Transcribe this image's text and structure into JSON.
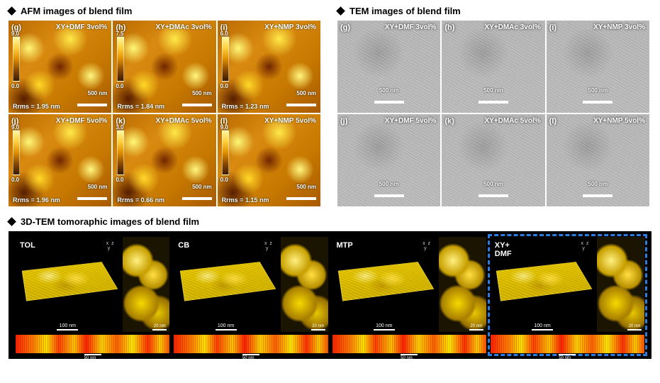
{
  "sections": {
    "afm_title": "AFM images of blend film",
    "tem_title": "TEM images of blend film",
    "tomo_title": "3D-TEM tomoraphic images of blend film"
  },
  "afm": {
    "panels": [
      {
        "letter": "(g)",
        "title": "XY+DMF 3vol%",
        "cb_max": "9.0",
        "cb_min": "0.0",
        "rrms": "Rrms = 1.95 nm",
        "scale": "500 nm"
      },
      {
        "letter": "(h)",
        "title": "XY+DMAc 3vol%",
        "cb_max": "7.5",
        "cb_min": "0.0",
        "rrms": "Rrms = 1.84 nm",
        "scale": "500 nm"
      },
      {
        "letter": "(i)",
        "title": "XY+NMP 3vol%",
        "cb_max": "6.0",
        "cb_min": "0.0",
        "rrms": "Rrms = 1.23 nm",
        "scale": "500 nm"
      },
      {
        "letter": "(j)",
        "title": "XY+DMF 5vol%",
        "cb_max": "9.0",
        "cb_min": "0.0",
        "rrms": "Rrms = 1.96 nm",
        "scale": "500 nm"
      },
      {
        "letter": "(k)",
        "title": "XY+DMAc 5vol%",
        "cb_max": "3.0",
        "cb_min": "0.0",
        "rrms": "Rrms = 0.66 nm",
        "scale": "500 nm"
      },
      {
        "letter": "(l)",
        "title": "XY+NMP 5vol%",
        "cb_max": "9.0",
        "cb_min": "0.0",
        "rrms": "Rrms = 1.15 nm",
        "scale": "500 nm"
      }
    ]
  },
  "tem": {
    "panels": [
      {
        "letter": "(g)",
        "title": "XY+DMF 3vol%",
        "scale": "500 nm"
      },
      {
        "letter": "(h)",
        "title": "XY+DMAc 3vol%",
        "scale": "500 nm"
      },
      {
        "letter": "(i)",
        "title": "XY+NMP 3vol%",
        "scale": "500 nm"
      },
      {
        "letter": "(j)",
        "title": "XY+DMF 5vol%",
        "scale": "500 nm"
      },
      {
        "letter": "(k)",
        "title": "XY+DMAc 5vol%",
        "scale": "500 nm"
      },
      {
        "letter": "(l)",
        "title": "XY+NMP 5vol%",
        "scale": "500 nm"
      }
    ]
  },
  "tomo": {
    "items": [
      {
        "label": "TOL",
        "slab_scale": "100 nm",
        "zoom_scale": "20 nm",
        "bottom_scale": "50 nm",
        "highlight": false
      },
      {
        "label": "CB",
        "slab_scale": "100 nm",
        "zoom_scale": "20 nm",
        "bottom_scale": "50 nm",
        "highlight": false
      },
      {
        "label": "MTP",
        "slab_scale": "100 nm",
        "zoom_scale": "20 nm",
        "bottom_scale": "50 nm",
        "highlight": false
      },
      {
        "label": "XY+\nDMF",
        "slab_scale": "100 nm",
        "zoom_scale": "20 nm",
        "bottom_scale": "50 nm",
        "highlight": true
      }
    ],
    "axes_label": "x  z\n  y"
  },
  "colors": {
    "background": "#ffffff",
    "tomo_bg": "#000000",
    "highlight_dash": "#2a7de1",
    "afm_gradient": [
      "#fff8a0",
      "#ffd040",
      "#e09000",
      "#8a4a00",
      "#3a1a00"
    ],
    "tem_gray": "#b8b8b8"
  }
}
